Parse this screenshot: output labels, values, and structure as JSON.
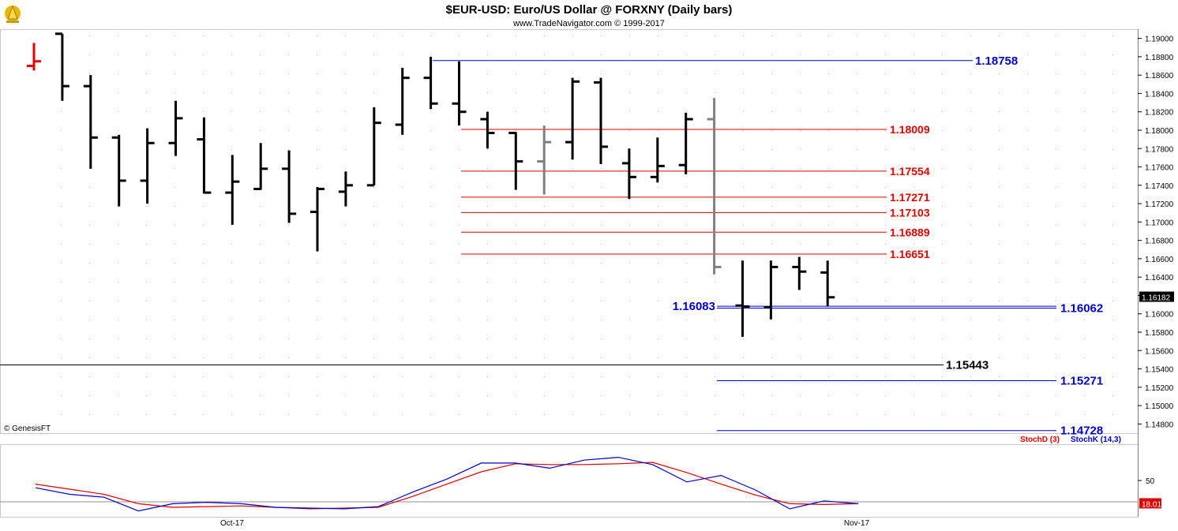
{
  "header": {
    "title": "$EUR-USD:  Euro/US Dollar @ FORXNY  (Daily bars)",
    "subtitle": "www.TradeNavigator.com © 1999-2017"
  },
  "watermark": "© GenesisFT",
  "colors": {
    "bar": "#000000",
    "bar_gray": "#808080",
    "bar_red": "#e00000",
    "blue_level": "#0000cc",
    "red_level": "#dd0000",
    "black_level": "#000000",
    "stoch_d": "#dd0000",
    "stoch_k": "#0000cc",
    "grid_dot": "#b0b0b0"
  },
  "price_axis": {
    "min": 1.147,
    "max": 1.191,
    "ticks": [
      "1.19000",
      "1.18800",
      "1.18600",
      "1.18400",
      "1.18200",
      "1.18000",
      "1.17800",
      "1.17600",
      "1.17400",
      "1.17200",
      "1.17000",
      "1.16800",
      "1.16600",
      "1.16400",
      "1.16200",
      "1.16000",
      "1.15800",
      "1.15600",
      "1.15400",
      "1.15200",
      "1.15000",
      "1.14800"
    ],
    "last_price": "1.16182"
  },
  "date_labels": [
    "Oct-17",
    "Nov-17"
  ],
  "chart_data": [
    {
      "type": "ohlc",
      "title": "$EUR-USD:  Euro/US Dollar @ FORXNY  (Daily bars)",
      "ylim": [
        1.147,
        1.191
      ],
      "bars": [
        {
          "o": 1.187,
          "h": 1.1895,
          "l": 1.1865,
          "c": 1.1875,
          "color": "red"
        },
        {
          "o": 1.1905,
          "h": 1.1905,
          "l": 1.1832,
          "c": 1.1848
        },
        {
          "o": 1.1848,
          "h": 1.186,
          "l": 1.1758,
          "c": 1.1792
        },
        {
          "o": 1.1792,
          "h": 1.1795,
          "l": 1.1717,
          "c": 1.1745
        },
        {
          "o": 1.1745,
          "h": 1.1802,
          "l": 1.172,
          "c": 1.1786
        },
        {
          "o": 1.1786,
          "h": 1.1832,
          "l": 1.1772,
          "c": 1.1813
        },
        {
          "o": 1.179,
          "h": 1.1814,
          "l": 1.1731,
          "c": 1.1732
        },
        {
          "o": 1.1732,
          "h": 1.1773,
          "l": 1.1697,
          "c": 1.1744
        },
        {
          "o": 1.1736,
          "h": 1.1786,
          "l": 1.1735,
          "c": 1.1758
        },
        {
          "o": 1.1758,
          "h": 1.1778,
          "l": 1.1699,
          "c": 1.1709
        },
        {
          "o": 1.1711,
          "h": 1.1738,
          "l": 1.1668,
          "c": 1.1736
        },
        {
          "o": 1.1733,
          "h": 1.1755,
          "l": 1.1717,
          "c": 1.174
        },
        {
          "o": 1.174,
          "h": 1.1825,
          "l": 1.174,
          "c": 1.1808
        },
        {
          "o": 1.1806,
          "h": 1.1868,
          "l": 1.1795,
          "c": 1.1857
        },
        {
          "o": 1.1857,
          "h": 1.188,
          "l": 1.1823,
          "c": 1.1829
        },
        {
          "o": 1.1829,
          "h": 1.1875,
          "l": 1.1805,
          "c": 1.182
        },
        {
          "o": 1.1812,
          "h": 1.182,
          "l": 1.178,
          "c": 1.1797
        },
        {
          "o": 1.1797,
          "h": 1.1798,
          "l": 1.1735,
          "c": 1.1766
        },
        {
          "o": 1.1766,
          "h": 1.1805,
          "l": 1.173,
          "c": 1.1787,
          "color": "gray"
        },
        {
          "o": 1.1787,
          "h": 1.1857,
          "l": 1.1768,
          "c": 1.1853
        },
        {
          "o": 1.1852,
          "h": 1.1857,
          "l": 1.1763,
          "c": 1.1782
        },
        {
          "o": 1.1764,
          "h": 1.178,
          "l": 1.1725,
          "c": 1.1749
        },
        {
          "o": 1.1749,
          "h": 1.1792,
          "l": 1.1743,
          "c": 1.1761
        },
        {
          "o": 1.1762,
          "h": 1.1819,
          "l": 1.1752,
          "c": 1.1812
        },
        {
          "o": 1.1812,
          "h": 1.1835,
          "l": 1.1643,
          "c": 1.1651,
          "color": "gray"
        },
        {
          "o": 1.1609,
          "h": 1.1658,
          "l": 1.1575,
          "c": 1.1608
        },
        {
          "o": 1.1607,
          "h": 1.1658,
          "l": 1.1594,
          "c": 1.1651
        },
        {
          "o": 1.1651,
          "h": 1.1662,
          "l": 1.1626,
          "c": 1.1646
        },
        {
          "o": 1.1645,
          "h": 1.1658,
          "l": 1.1608,
          "c": 1.1618
        }
      ],
      "levels": [
        {
          "value": 1.18758,
          "label": "1.18758",
          "color": "blue"
        },
        {
          "value": 1.18009,
          "label": "1.18009",
          "color": "red"
        },
        {
          "value": 1.17554,
          "label": "1.17554",
          "color": "red"
        },
        {
          "value": 1.17271,
          "label": "1.17271",
          "color": "red"
        },
        {
          "value": 1.17103,
          "label": "1.17103",
          "color": "red"
        },
        {
          "value": 1.16889,
          "label": "1.16889",
          "color": "red"
        },
        {
          "value": 1.16651,
          "label": "1.16651",
          "color": "red"
        },
        {
          "value": 1.16083,
          "label": "1.16083",
          "color": "blue"
        },
        {
          "value": 1.16062,
          "label": "1.16062",
          "color": "blue"
        },
        {
          "value": 1.15443,
          "label": "1.15443",
          "color": "black"
        },
        {
          "value": 1.15271,
          "label": "1.15271",
          "color": "blue"
        },
        {
          "value": 1.14728,
          "label": "1.14728",
          "color": "blue"
        }
      ]
    },
    {
      "type": "line",
      "ylim": [
        0,
        100
      ],
      "y_ticks": [
        "50"
      ],
      "last_value": "18.01",
      "series": [
        {
          "name": "StochD (3)",
          "color": "red",
          "values": [
            45,
            38,
            31,
            18,
            13,
            14,
            15,
            13,
            11,
            12,
            13,
            28,
            45,
            62,
            73,
            72,
            72,
            73,
            75,
            61,
            45,
            30,
            18,
            17,
            18
          ]
        },
        {
          "name": "StochK (14,3)",
          "color": "blue",
          "values": [
            40,
            31,
            27,
            8,
            18,
            20,
            18,
            13,
            12,
            11,
            14,
            34,
            52,
            74,
            74,
            67,
            78,
            82,
            72,
            48,
            57,
            37,
            11,
            22,
            18
          ]
        }
      ]
    }
  ]
}
